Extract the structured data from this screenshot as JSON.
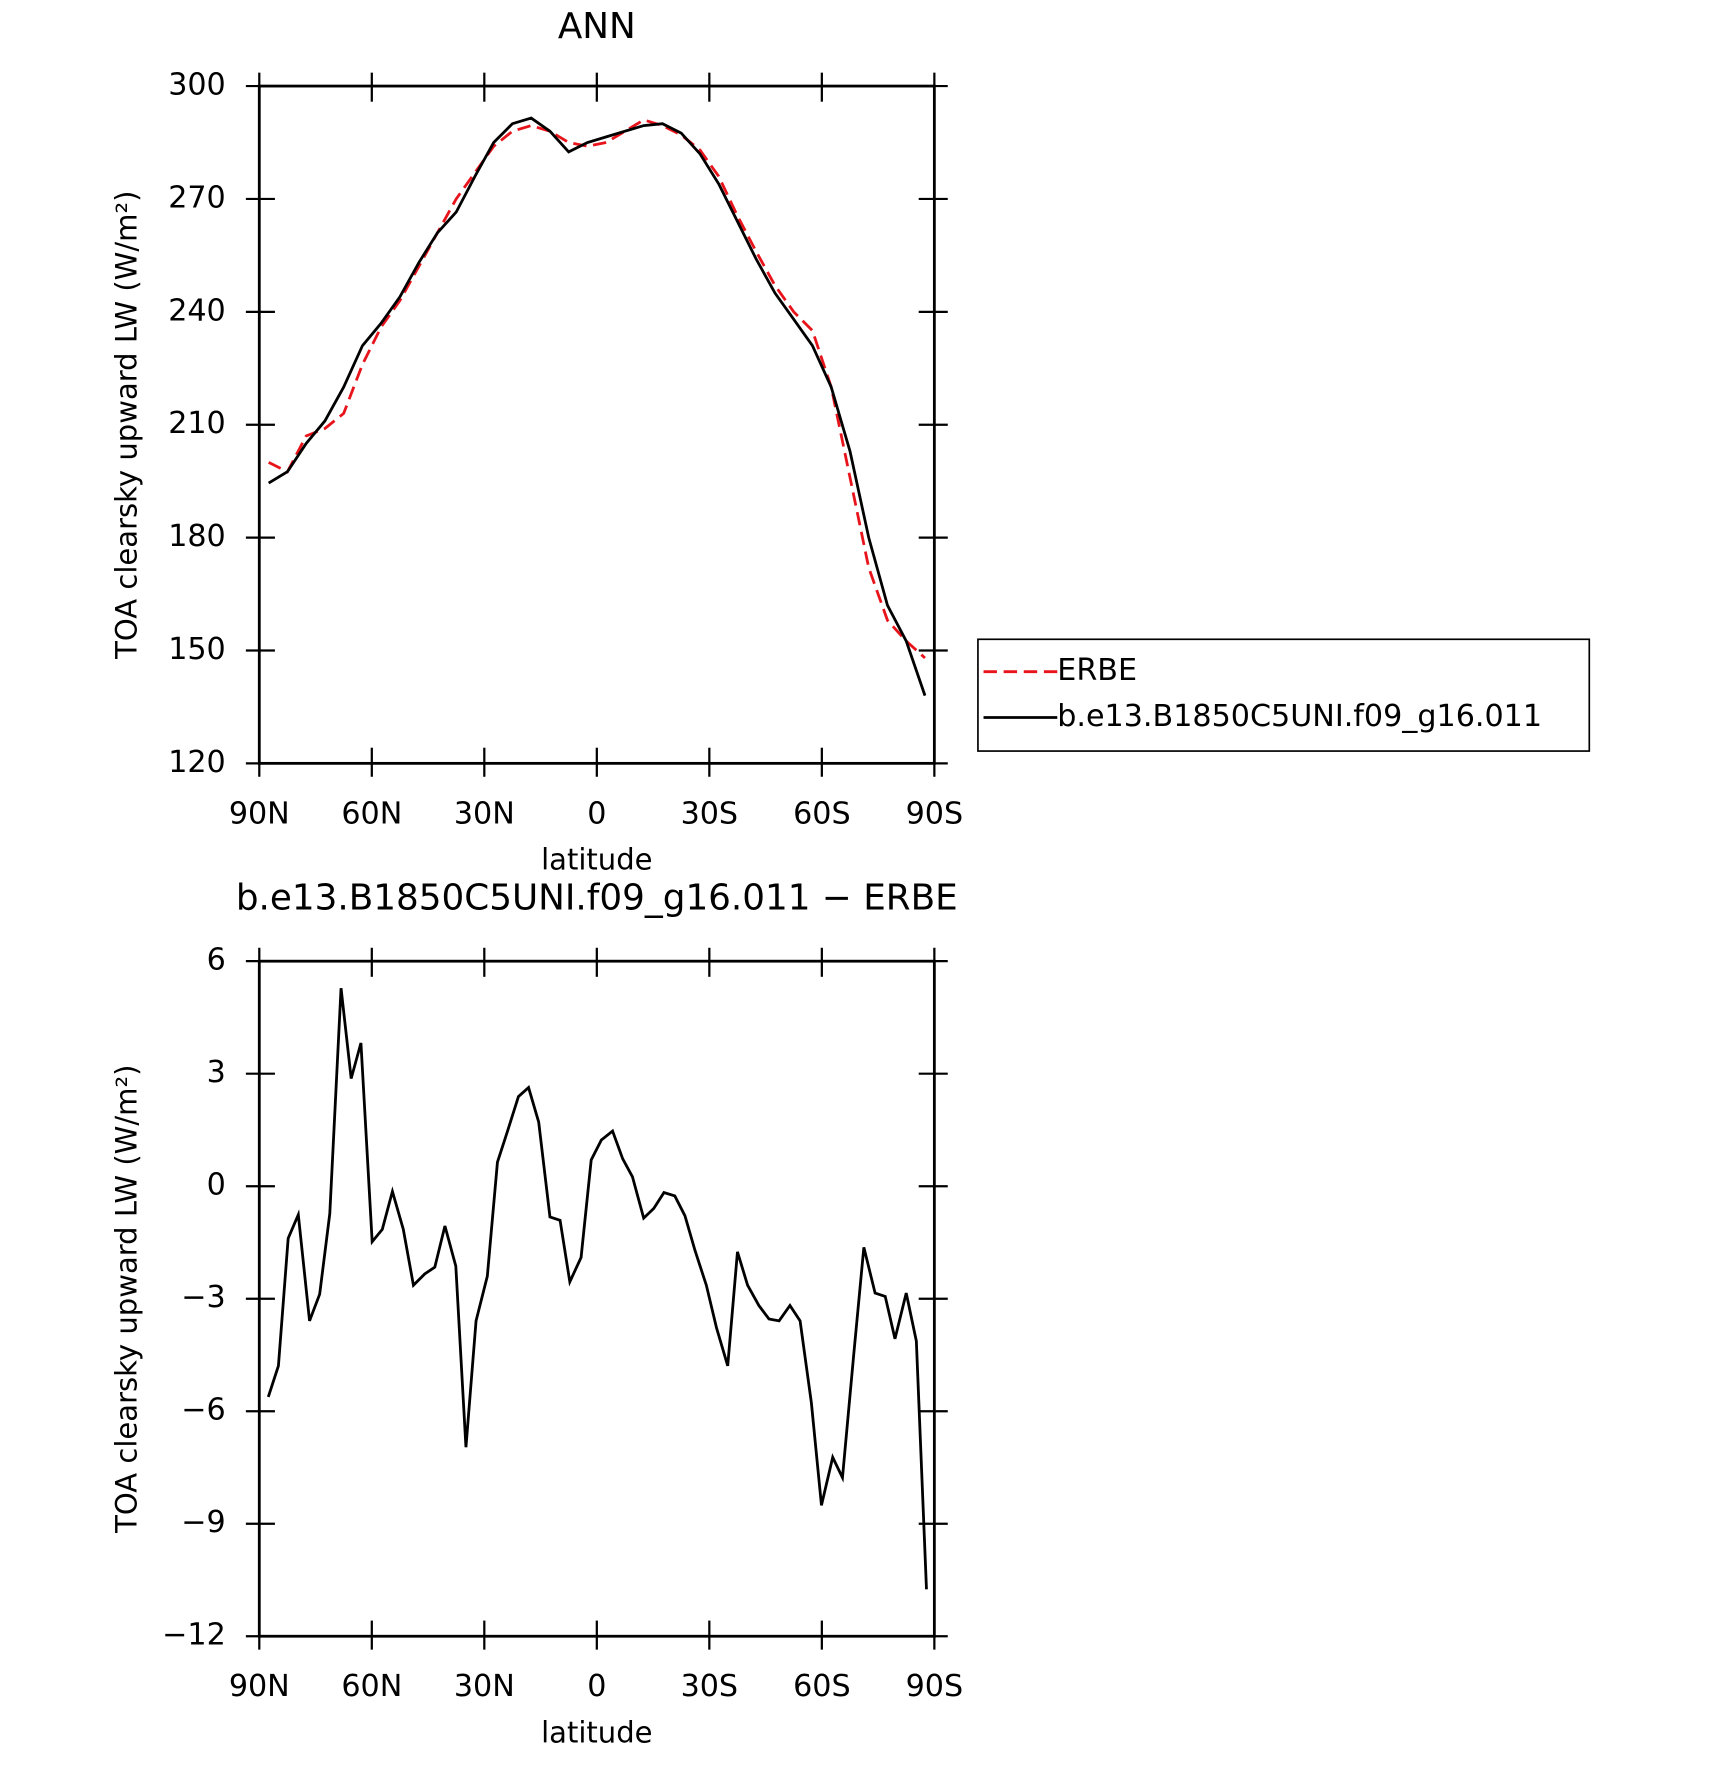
{
  "chart_data": [
    {
      "type": "line",
      "title": "ANN",
      "xlabel": "latitude",
      "ylabel": "TOA clearsky upward LW (W/m²)",
      "x": [
        87.5,
        82.5,
        77.5,
        72.5,
        67.5,
        62.5,
        57.5,
        52.5,
        47.5,
        42.5,
        37.5,
        32.5,
        27.5,
        22.5,
        17.5,
        12.5,
        7.5,
        2.5,
        -2.5,
        -7.5,
        -12.5,
        -17.5,
        -22.5,
        -27.5,
        -32.5,
        -37.5,
        -42.5,
        -47.5,
        -52.5,
        -57.5,
        -62.5,
        -67.5,
        -72.5,
        -77.5,
        -82.5,
        -87.5
      ],
      "series": [
        {
          "name": "ERBE",
          "color": "#e8141c",
          "dash": true,
          "values": [
            200,
            197.5,
            207,
            209,
            213,
            226,
            236,
            243,
            252,
            261,
            270,
            277,
            284,
            288,
            289.5,
            288,
            285,
            284,
            285,
            288,
            291,
            289.5,
            287,
            283,
            276,
            265.5,
            256,
            247,
            240,
            235,
            220,
            196,
            172,
            158,
            152.5,
            148
          ]
        },
        {
          "name": "b.e13.B1850C5UNI.f09_g16.011",
          "color": "#000000",
          "dash": false,
          "values": [
            194.5,
            197.5,
            205,
            211,
            220,
            231,
            237,
            244,
            253,
            261,
            266.5,
            276,
            285,
            290,
            291.5,
            288,
            282.5,
            285,
            286.5,
            288,
            289.5,
            290,
            287.5,
            282,
            274,
            264,
            254,
            245,
            238,
            231,
            220,
            203,
            180,
            162,
            152.5,
            138
          ]
        }
      ],
      "xlim": [
        90,
        -90
      ],
      "xticks": [
        {
          "value": 90,
          "label": "90N"
        },
        {
          "value": 60,
          "label": "60N"
        },
        {
          "value": 30,
          "label": "30N"
        },
        0,
        {
          "value": -30,
          "label": "30S"
        },
        {
          "value": -60,
          "label": "60S"
        },
        {
          "value": -90,
          "label": "90S"
        }
      ],
      "ylim": [
        120,
        300
      ],
      "yticks": [
        120,
        150,
        180,
        210,
        240,
        270,
        300
      ],
      "legend": "right"
    },
    {
      "type": "line",
      "title": "b.e13.B1850C5UNI.f09_g16.011 − ERBE",
      "xlabel": "latitude",
      "ylabel": "TOA clearsky upward LW (W/m²)",
      "x": [
        87.6,
        84.9,
        82.3,
        79.6,
        76.6,
        73.9,
        71.2,
        68.2,
        65.5,
        62.9,
        59.9,
        57.2,
        54.5,
        51.6,
        48.9,
        45.9,
        43.2,
        40.5,
        37.6,
        34.9,
        32.2,
        29.2,
        26.5,
        23.9,
        20.9,
        18.2,
        15.5,
        12.5,
        9.8,
        7.2,
        4.2,
        1.5,
        -1.2,
        -4.2,
        -6.9,
        -9.5,
        -12.5,
        -15.2,
        -17.9,
        -20.8,
        -23.5,
        -26.2,
        -29.2,
        -31.9,
        -34.9,
        -37.5,
        -40.2,
        -43.2,
        -45.9,
        -48.6,
        -51.5,
        -54.2,
        -57.2,
        -59.9,
        -62.9,
        -65.5,
        -68.5,
        -71.2,
        -74.2,
        -76.9,
        -79.5,
        -82.5,
        -85.2,
        -87.9
      ],
      "values": [
        -5.62,
        -4.79,
        -1.39,
        -0.76,
        -3.59,
        -2.88,
        -0.73,
        5.28,
        2.87,
        3.82,
        -1.48,
        -1.15,
        -0.14,
        -1.15,
        -2.64,
        -2.34,
        -2.16,
        -1.06,
        -2.13,
        -6.96,
        -3.59,
        -2.4,
        0.64,
        1.44,
        2.39,
        2.63,
        1.71,
        -0.82,
        -0.91,
        -2.55,
        -1.9,
        0.7,
        1.23,
        1.47,
        0.73,
        0.25,
        -0.85,
        -0.59,
        -0.17,
        -0.26,
        -0.79,
        -1.72,
        -2.64,
        -3.77,
        -4.79,
        -1.75,
        -2.64,
        -3.18,
        -3.54,
        -3.59,
        -3.18,
        -3.59,
        -5.77,
        -8.51,
        -7.23,
        -7.77,
        -4.49,
        -1.63,
        -2.85,
        -2.94,
        -4.07,
        -2.85,
        -4.13,
        -10.75
      ],
      "color": "#000000",
      "xlim": [
        90,
        -90
      ],
      "xticks": [
        {
          "value": 90,
          "label": "90N"
        },
        {
          "value": 60,
          "label": "60N"
        },
        {
          "value": 30,
          "label": "30N"
        },
        0,
        {
          "value": -30,
          "label": "30S"
        },
        {
          "value": -60,
          "label": "60S"
        },
        {
          "value": -90,
          "label": "90S"
        }
      ],
      "ylim": [
        -12,
        6
      ],
      "yticks": [
        {
          "value": -12,
          "label": "−12"
        },
        {
          "value": -9,
          "label": "−9"
        },
        {
          "value": -6,
          "label": "−6"
        },
        {
          "value": -3,
          "label": "−3"
        },
        0,
        3,
        6
      ]
    }
  ]
}
